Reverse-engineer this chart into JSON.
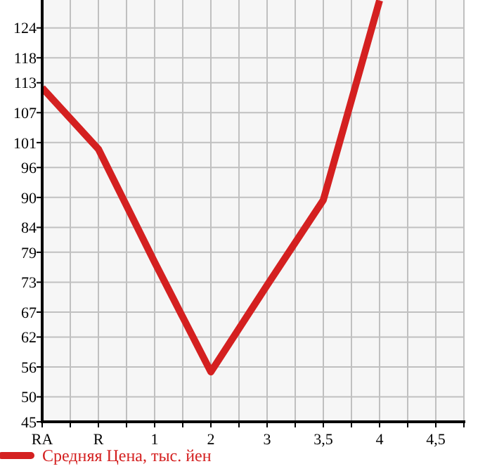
{
  "chart_data": {
    "type": "line",
    "categories": [
      "RA",
      "R",
      "1",
      "2",
      "3",
      "3,5",
      "4",
      "4,5"
    ],
    "series": [
      {
        "name": "Средняя Цена, тыс. йен",
        "color": "#d42020",
        "values": [
          112,
          99.7,
          77,
          55,
          72.4,
          89.5,
          129.5,
          null
        ]
      }
    ],
    "ylim": [
      45,
      129.6
    ],
    "yticks": [
      45,
      50,
      56,
      62,
      67,
      73,
      79,
      84,
      90,
      96,
      101,
      107,
      113,
      118,
      124
    ],
    "grid": true,
    "legend": "bottom left",
    "marker": "none",
    "line_style": "solid"
  }
}
